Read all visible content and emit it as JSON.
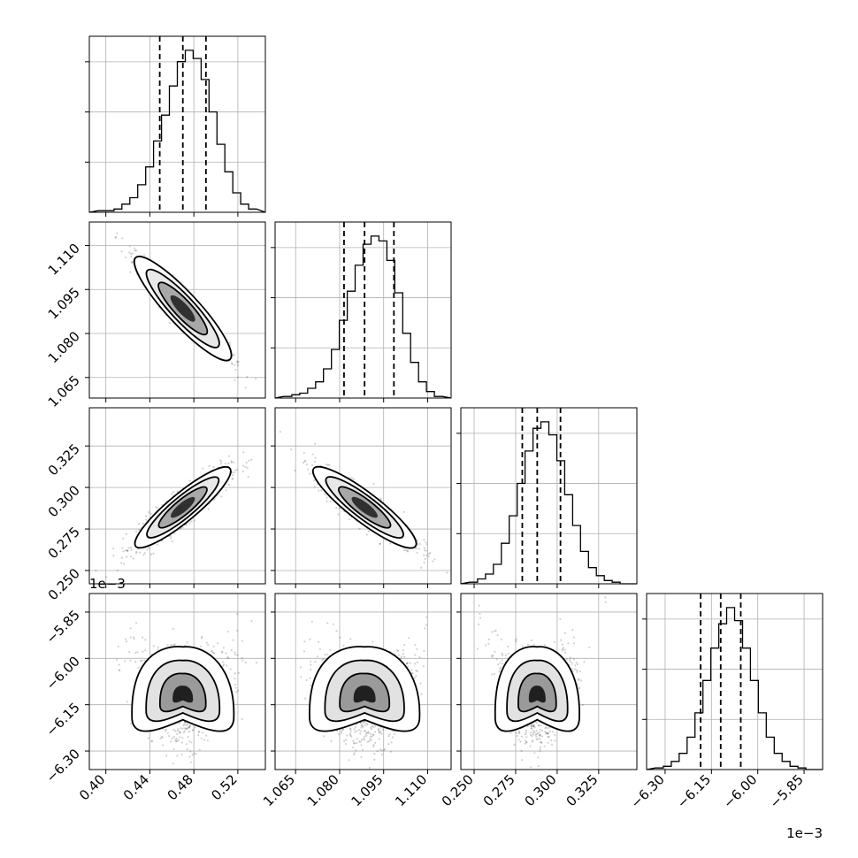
{
  "chart_data": {
    "type": "corner",
    "parameters": 4,
    "axis_ranges": [
      [
        0.385,
        0.545
      ],
      [
        1.058,
        1.118
      ],
      [
        0.242,
        0.348
      ],
      [
        -6.36,
        -5.79
      ]
    ],
    "axis_ticks": [
      [
        "0.40",
        "0.44",
        "0.48",
        "0.52"
      ],
      [
        "1.065",
        "1.080",
        "1.095",
        "1.110"
      ],
      [
        "0.250",
        "0.275",
        "0.300",
        "0.325"
      ],
      [
        "−6.30",
        "−6.15",
        "−6.00",
        "−5.85"
      ]
    ],
    "axis_tick_values": [
      [
        0.4,
        0.44,
        0.48,
        0.52
      ],
      [
        1.065,
        1.08,
        1.095,
        1.11
      ],
      [
        0.25,
        0.275,
        0.3,
        0.325
      ],
      [
        -6.3,
        -6.15,
        -6.0,
        -5.85
      ]
    ],
    "offset_text": "1e−3",
    "quantiles": [
      [
        0.449,
        0.47,
        0.491
      ],
      [
        1.0815,
        1.0885,
        1.0985
      ],
      [
        0.279,
        0.288,
        0.302
      ],
      [
        -6.185,
        -6.12,
        -6.055
      ]
    ],
    "histograms": [
      [
        1,
        1,
        2,
        5,
        9,
        17,
        28,
        44,
        60,
        78,
        93,
        100,
        95,
        82,
        62,
        42,
        25,
        12,
        5,
        2
      ],
      [
        1,
        2,
        3,
        6,
        10,
        18,
        30,
        48,
        66,
        82,
        95,
        100,
        97,
        85,
        65,
        40,
        22,
        10,
        4,
        1
      ],
      [
        1,
        3,
        6,
        12,
        25,
        42,
        62,
        82,
        96,
        100,
        92,
        76,
        55,
        36,
        20,
        10,
        5,
        2,
        1,
        0
      ],
      [
        1,
        2,
        5,
        10,
        20,
        35,
        55,
        75,
        90,
        100,
        92,
        75,
        55,
        35,
        20,
        10,
        5,
        2,
        1,
        0
      ]
    ],
    "grid": true
  }
}
